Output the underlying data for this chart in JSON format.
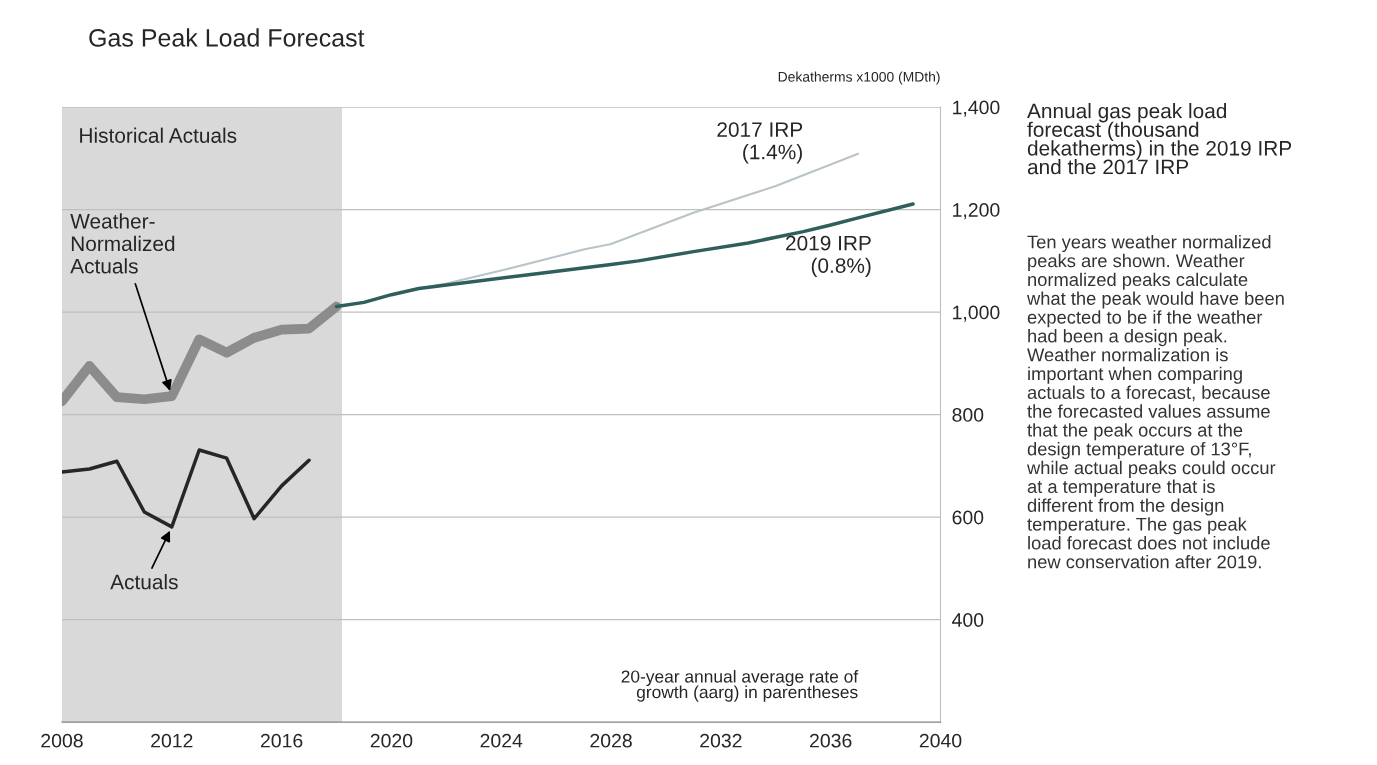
{
  "chart_data": {
    "type": "line",
    "title": "Gas Peak Load Forecast",
    "ylabel": "Dekatherms x1000 (MDth)",
    "xlim": [
      2008,
      2040
    ],
    "xticks": [
      2008,
      2012,
      2016,
      2020,
      2024,
      2028,
      2032,
      2036,
      2040
    ],
    "ylim": [
      200,
      1400
    ],
    "yticks": [
      {
        "value": 400,
        "label": "400"
      },
      {
        "value": 600,
        "label": "600"
      },
      {
        "value": 800,
        "label": "800"
      },
      {
        "value": 1000,
        "label": "1,000"
      },
      {
        "value": 1200,
        "label": "1,200"
      },
      {
        "value": 1400,
        "label": "1,400"
      }
    ],
    "grid": "y",
    "bands": [
      {
        "axis": "x",
        "from": 2008,
        "to": 2018.2,
        "label": "Historical Actuals",
        "color": "#d9d9d9"
      }
    ],
    "series": [
      {
        "color": "#8c8c8c",
        "x": [
          2008,
          2009,
          2010,
          2011,
          2012,
          2013,
          2014,
          2015,
          2016,
          2017,
          2018
        ],
        "values": [
          826,
          895,
          834,
          830,
          836,
          947,
          921,
          950,
          966,
          968,
          1011
        ]
      },
      {
        "color": "#262626",
        "x": [
          2008,
          2009,
          2010,
          2011,
          2012,
          2013,
          2014,
          2015,
          2016,
          2017
        ],
        "values": [
          688,
          694,
          709,
          610,
          581,
          731,
          715,
          597,
          661,
          711
        ]
      },
      {
        "name": "2017 IRP\n(1.4%)",
        "color": "#b9c3c8",
        "x": [
          2018,
          2019,
          2020,
          2021,
          2022,
          2024,
          2027,
          2028,
          2031,
          2034,
          2037
        ],
        "values": [
          1011,
          1019,
          1034,
          1046,
          1056,
          1081,
          1122,
          1133,
          1194,
          1246,
          1309
        ]
      },
      {
        "name": "2019 IRP\n(0.8%)",
        "color": "#2f5f5c",
        "x": [
          2018,
          2019,
          2020,
          2021,
          2025,
          2028,
          2029,
          2031,
          2033,
          2035,
          2036,
          2037,
          2039
        ],
        "values": [
          1011,
          1019,
          1034,
          1046,
          1073,
          1093,
          1100,
          1118,
          1135,
          1157,
          1170,
          1184,
          1211
        ]
      }
    ],
    "annotations": [
      {
        "text": "Weather-\nNormalized\nActuals",
        "x": 2012,
        "y": 836
      },
      {
        "text": "Actuals",
        "x": 2012,
        "y": 581
      },
      "20-year annual average rate of\ngrowth (aarg) in parentheses",
      "Annual gas peak load\nforecast (thousand\ndekatherms) in the 2019 IRP\nand the 2017 IRP",
      "Ten years weather normalized\npeaks are shown. Weather\nnormalized peaks calculate\nwhat the peak would have been\nexpected to be if the weather\nhad been a design peak.\nWeather normalization is\nimportant when comparing\nactuals to a forecast, because\nthe forecasted values assume\nthat the peak occurs at the\ndesign temperature of 13°F,\nwhile actual peaks could occur\nat a temperature that is\ndifferent from the design\ntemperature. The gas peak\nload forecast does not include\nnew conservation after 2019."
    ]
  }
}
